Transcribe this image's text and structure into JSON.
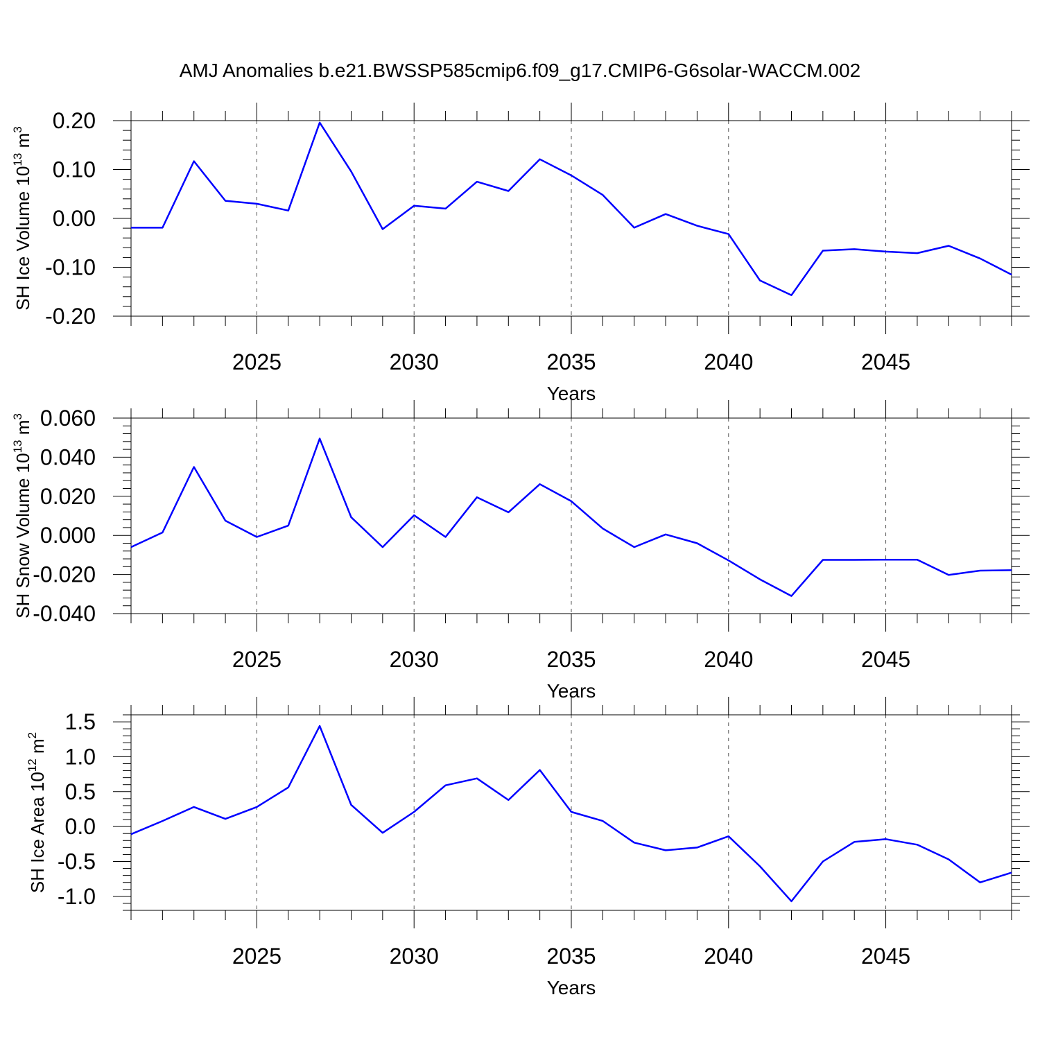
{
  "title": "AMJ Anomalies b.e21.BWSSP585cmip6.f09_g17.CMIP6-G6solar-WACCM.002",
  "line_color": "#0000ff",
  "chart_data": [
    {
      "type": "line",
      "ylabel": "SH Ice Volume 10",
      "ylabel_exp": "13",
      "ylabel_unit": " m",
      "ylabel_unit_exp": "3",
      "xlabel": "Years",
      "xlim": [
        2021,
        2049
      ],
      "ylim": [
        -0.2,
        0.2
      ],
      "y_ticks": [
        0.2,
        0.1,
        0.0,
        -0.1,
        -0.2
      ],
      "y_tick_labels": [
        "0.20",
        "0.10",
        "0.00",
        "-0.10",
        "-0.20"
      ],
      "x_ticks": [
        2025,
        2030,
        2035,
        2040,
        2045
      ],
      "x_tick_labels": [
        "2025",
        "2030",
        "2035",
        "2040",
        "2045"
      ],
      "x": [
        2021,
        2022,
        2023,
        2024,
        2025,
        2026,
        2027,
        2028,
        2029,
        2030,
        2031,
        2032,
        2033,
        2034,
        2035,
        2036,
        2037,
        2038,
        2039,
        2040,
        2041,
        2042,
        2043,
        2044,
        2045,
        2046,
        2047,
        2048,
        2049
      ],
      "values": [
        -0.019,
        -0.019,
        0.117,
        0.036,
        0.03,
        0.016,
        0.196,
        0.096,
        -0.022,
        0.026,
        0.02,
        0.075,
        0.056,
        0.121,
        0.088,
        0.048,
        -0.019,
        0.009,
        -0.015,
        -0.032,
        -0.127,
        -0.157,
        -0.066,
        -0.063,
        -0.068,
        -0.071,
        -0.056,
        -0.082,
        -0.115
      ]
    },
    {
      "type": "line",
      "ylabel": "SH Snow Volume 10",
      "ylabel_exp": "13",
      "ylabel_unit": " m",
      "ylabel_unit_exp": "3",
      "xlabel": "Years",
      "xlim": [
        2021,
        2049
      ],
      "ylim": [
        -0.04,
        0.06
      ],
      "y_ticks": [
        0.06,
        0.04,
        0.02,
        0.0,
        -0.02,
        -0.04
      ],
      "y_tick_labels": [
        "0.060",
        "0.040",
        "0.020",
        "0.000",
        "-0.020",
        "-0.040"
      ],
      "x_ticks": [
        2025,
        2030,
        2035,
        2040,
        2045
      ],
      "x_tick_labels": [
        "2025",
        "2030",
        "2035",
        "2040",
        "2045"
      ],
      "x": [
        2021,
        2022,
        2023,
        2024,
        2025,
        2026,
        2027,
        2028,
        2029,
        2030,
        2031,
        2032,
        2033,
        2034,
        2035,
        2036,
        2037,
        2038,
        2039,
        2040,
        2041,
        2042,
        2043,
        2044,
        2045,
        2046,
        2047,
        2048,
        2049
      ],
      "values": [
        -0.006,
        0.0015,
        0.035,
        0.0075,
        -0.0008,
        0.005,
        0.0495,
        0.0093,
        -0.006,
        0.0103,
        -0.0008,
        0.0195,
        0.0118,
        0.0262,
        0.0175,
        0.0035,
        -0.006,
        0.0005,
        -0.004,
        -0.0128,
        -0.0225,
        -0.031,
        -0.0125,
        -0.0125,
        -0.0124,
        -0.0124,
        -0.0202,
        -0.018,
        -0.0178
      ]
    },
    {
      "type": "line",
      "ylabel": "SH Ice Area 10",
      "ylabel_exp": "12",
      "ylabel_unit": " m",
      "ylabel_unit_exp": "2",
      "xlabel": "Years",
      "xlim": [
        2021,
        2049
      ],
      "ylim": [
        -1.2,
        1.6
      ],
      "y_ticks": [
        1.5,
        1.0,
        0.5,
        0.0,
        -0.5,
        -1.0
      ],
      "y_tick_labels": [
        "1.5",
        "1.0",
        "0.5",
        "0.0",
        "-0.5",
        "-1.0"
      ],
      "x_ticks": [
        2025,
        2030,
        2035,
        2040,
        2045
      ],
      "x_tick_labels": [
        "2025",
        "2030",
        "2035",
        "2040",
        "2045"
      ],
      "x": [
        2021,
        2022,
        2023,
        2024,
        2025,
        2026,
        2027,
        2028,
        2029,
        2030,
        2031,
        2032,
        2033,
        2034,
        2035,
        2036,
        2037,
        2038,
        2039,
        2040,
        2041,
        2042,
        2043,
        2044,
        2045,
        2046,
        2047,
        2048,
        2049
      ],
      "values": [
        -0.11,
        0.08,
        0.28,
        0.11,
        0.28,
        0.56,
        1.44,
        0.31,
        -0.09,
        0.21,
        0.59,
        0.69,
        0.38,
        0.81,
        0.21,
        0.08,
        -0.23,
        -0.34,
        -0.3,
        -0.14,
        -0.57,
        -1.07,
        -0.5,
        -0.22,
        -0.18,
        -0.26,
        -0.47,
        -0.8,
        -0.66
      ]
    }
  ]
}
